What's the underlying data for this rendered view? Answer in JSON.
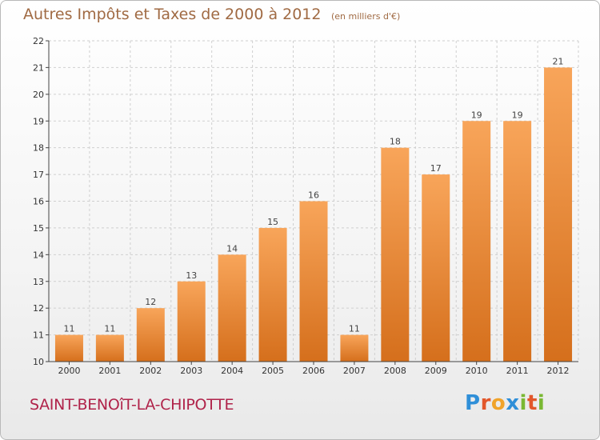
{
  "header": {
    "title": "Autres Impôts et Taxes de 2000 à 2012",
    "subtitle": "(en milliers d'€)"
  },
  "footer": {
    "commune": "SAINT-BENOîT-LA-CHIPOTTE",
    "logo_letters": [
      "P",
      "r",
      "o",
      "x",
      "i",
      "t",
      "i"
    ],
    "logo_colors": [
      "#2f8fd8",
      "#e2572b",
      "#f0a32a",
      "#2f8fd8",
      "#7ab833",
      "#e2572b",
      "#7ab833"
    ]
  },
  "colors": {
    "bar_light": "#f8a55a",
    "bar_dark": "#d56f1c",
    "grid": "#cfcfcf",
    "axis": "#444444"
  },
  "chart_data": {
    "type": "bar",
    "categories": [
      "2000",
      "2001",
      "2002",
      "2003",
      "2004",
      "2005",
      "2006",
      "2007",
      "2008",
      "2009",
      "2010",
      "2011",
      "2012"
    ],
    "values": [
      11,
      11,
      12,
      13,
      14,
      15,
      16,
      11,
      18,
      17,
      19,
      19,
      21
    ],
    "ylim": [
      10,
      22
    ],
    "yticks": [
      10,
      11,
      12,
      13,
      14,
      15,
      16,
      17,
      18,
      19,
      20,
      21,
      22
    ],
    "title": "Autres Impôts et Taxes de 2000 à 2012",
    "xlabel": "",
    "ylabel": "",
    "grid": true
  }
}
